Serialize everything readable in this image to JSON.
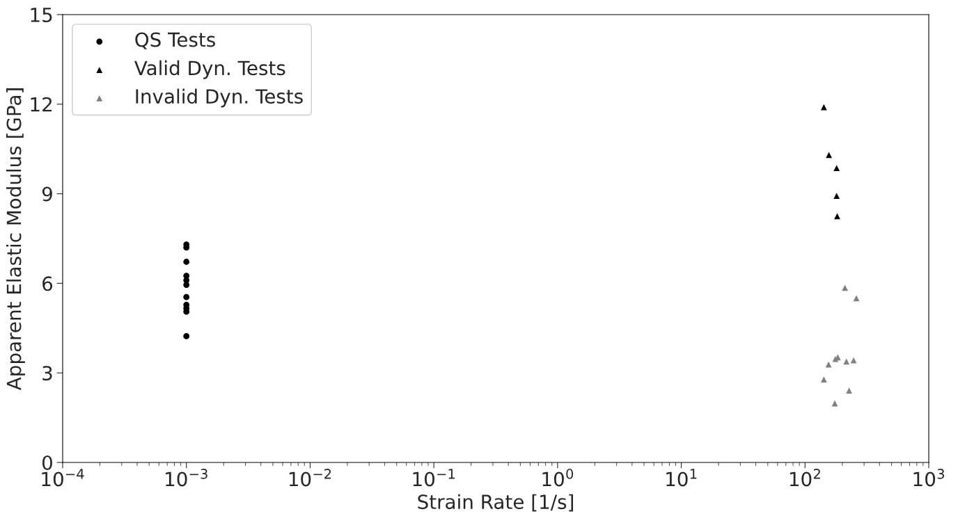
{
  "chart_data": {
    "type": "scatter",
    "xlabel": "Strain Rate [1/s]",
    "ylabel": "Apparent Elastic Modulus [GPa]",
    "log": "x",
    "xlim": [
      0.0001,
      1000
    ],
    "xticks": [
      {
        "value": 0.0001,
        "label": "10$^{−4}$"
      },
      {
        "value": 0.001,
        "label": "10$^{−3}$"
      },
      {
        "value": 0.01,
        "label": "10$^{−2}$"
      },
      {
        "value": 0.1,
        "label": "10$^{−1}$"
      },
      {
        "value": 1,
        "label": "10$^{0}$"
      },
      {
        "value": 10,
        "label": "10$^{1}$"
      },
      {
        "value": 100,
        "label": "10$^{2}$"
      },
      {
        "value": 1000,
        "label": "10$^{3}$"
      }
    ],
    "ylim": [
      0,
      15
    ],
    "yticks": [
      0,
      3,
      6,
      9,
      12,
      15
    ],
    "grid": false,
    "legend": "top left",
    "series": [
      {
        "name": "QS Tests",
        "color": "#000000",
        "marker": "circle",
        "x": [
          0.001,
          0.001,
          0.001,
          0.001,
          0.001,
          0.001,
          0.001,
          0.001,
          0.001,
          0.001,
          0.001
        ],
        "values": [
          7.3,
          7.2,
          6.72,
          6.25,
          6.1,
          5.95,
          5.54,
          5.28,
          5.16,
          5.05,
          4.23
        ]
      },
      {
        "name": "Valid Dyn. Tests",
        "color": "#000000",
        "marker": "triangle",
        "x": [
          142,
          156,
          180,
          180,
          182
        ],
        "values": [
          11.9,
          10.3,
          9.86,
          8.93,
          8.25
        ]
      },
      {
        "name": "Invalid Dyn. Tests",
        "color": "#808080",
        "marker": "triangle",
        "x": [
          210,
          260,
          176,
          184,
          216,
          247,
          155,
          142,
          227,
          174
        ],
        "values": [
          5.85,
          5.5,
          3.47,
          3.52,
          3.38,
          3.42,
          3.28,
          2.78,
          2.41,
          1.98
        ]
      }
    ]
  }
}
